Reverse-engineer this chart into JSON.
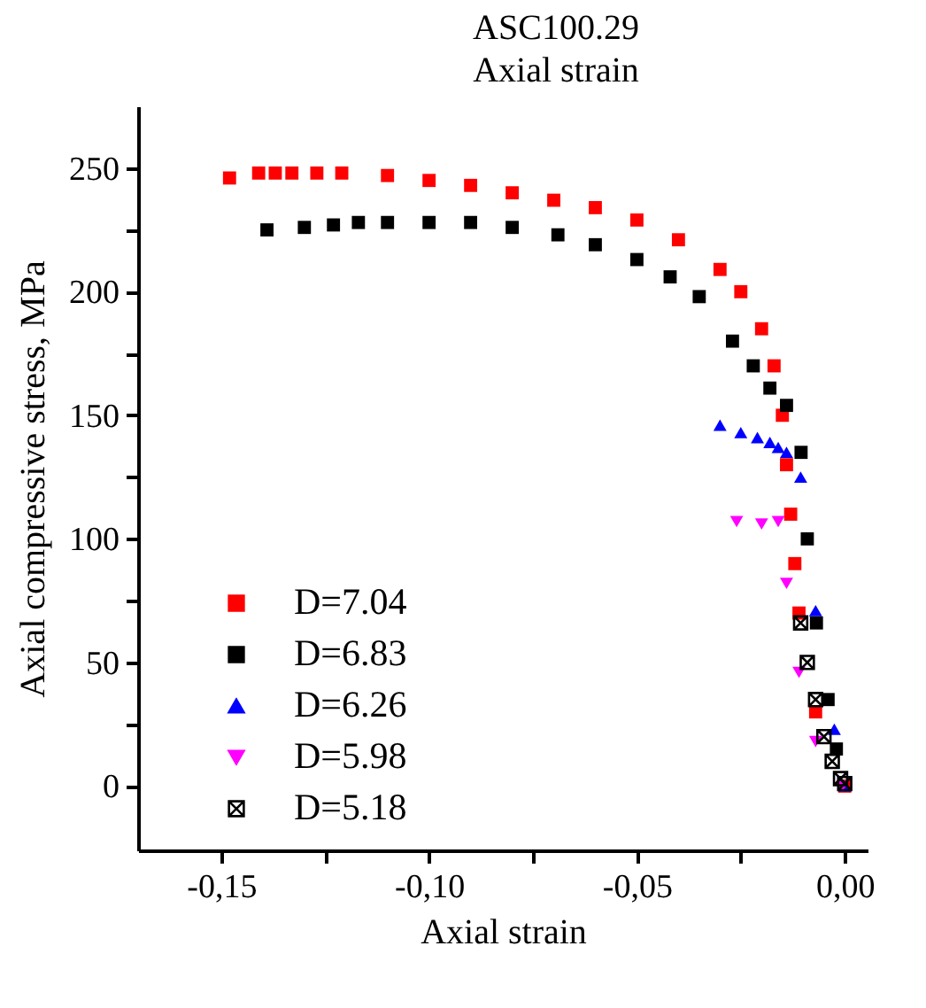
{
  "chart_data": {
    "type": "scatter",
    "title": "ASC100.29",
    "subtitle": "Axial strain",
    "xlabel": "Axial strain",
    "ylabel": "Axial compressive stress, MPa",
    "xlim": [
      -0.17,
      0.0055
    ],
    "ylim": [
      -26,
      275
    ],
    "xticks": [
      {
        "value": -0.15,
        "label": "-0,15"
      },
      {
        "value": -0.125,
        "label": null
      },
      {
        "value": -0.1,
        "label": "-0,10"
      },
      {
        "value": -0.075,
        "label": null
      },
      {
        "value": -0.05,
        "label": "-0,05"
      },
      {
        "value": -0.025,
        "label": null
      },
      {
        "value": 0,
        "label": "0,00"
      }
    ],
    "yticks": [
      0,
      {
        "value": 25,
        "label": null
      },
      50,
      {
        "value": 75,
        "label": null
      },
      100,
      {
        "value": 125,
        "label": null
      },
      150,
      {
        "value": 175,
        "label": null
      },
      200,
      {
        "value": 225,
        "label": null
      },
      250
    ],
    "grid": false,
    "legend": "left",
    "series": [
      {
        "name": "D=7.04",
        "color": "#ff0000",
        "marker": "square",
        "x": [
          -0.148,
          -0.141,
          -0.137,
          -0.133,
          -0.127,
          -0.121,
          -0.11,
          -0.1,
          -0.09,
          -0.08,
          -0.07,
          -0.06,
          -0.05,
          -0.04,
          -0.03,
          -0.025,
          -0.02,
          -0.017,
          -0.015,
          -0.014,
          -0.013,
          -0.012,
          -0.011,
          -0.009,
          -0.007,
          -0.004,
          -0.002,
          0
        ],
        "values": [
          246,
          248,
          248,
          248,
          248,
          248,
          247,
          245,
          243,
          240,
          237,
          234,
          229,
          221,
          209,
          200,
          185,
          170,
          150,
          130,
          110,
          90,
          70,
          null,
          30,
          null,
          null,
          0
        ]
      },
      {
        "name": "D=6.83",
        "color": "#000000",
        "marker": "square",
        "x": [
          -0.139,
          -0.13,
          -0.123,
          -0.117,
          -0.11,
          -0.1,
          -0.09,
          -0.08,
          -0.069,
          -0.06,
          -0.05,
          -0.042,
          -0.035,
          -0.027,
          -0.022,
          -0.018,
          -0.014,
          -0.0105,
          -0.009,
          -0.0068,
          -0.004,
          -0.002
        ],
        "values": [
          225,
          226,
          227,
          228,
          228,
          228,
          228,
          226,
          223,
          219,
          213,
          206,
          198,
          180,
          170,
          161,
          154,
          135,
          100,
          66,
          35,
          15
        ]
      },
      {
        "name": "D=6.26",
        "color": "#0000ff",
        "marker": "triangle",
        "x": [
          -0.03,
          -0.025,
          -0.021,
          -0.018,
          -0.016,
          -0.014,
          -0.0106,
          -0.007,
          -0.0025,
          0
        ],
        "values": [
          146,
          143,
          141,
          139,
          137,
          135,
          125,
          71,
          23,
          0
        ]
      },
      {
        "name": "D=5.98",
        "color": "#ff00ff",
        "marker": "triangle_down",
        "x": [
          -0.026,
          -0.02,
          -0.016,
          -0.014,
          -0.011,
          -0.007,
          -0.0005
        ],
        "values": [
          107,
          106,
          107,
          82,
          46,
          18,
          0
        ]
      },
      {
        "name": "D=5.18",
        "color": "#000000",
        "marker": "cross",
        "x": [
          -0.0106,
          -0.009,
          -0.007,
          -0.005,
          -0.003,
          -0.001,
          0
        ],
        "values": [
          66,
          50,
          35,
          20,
          10,
          3,
          1
        ]
      }
    ]
  }
}
